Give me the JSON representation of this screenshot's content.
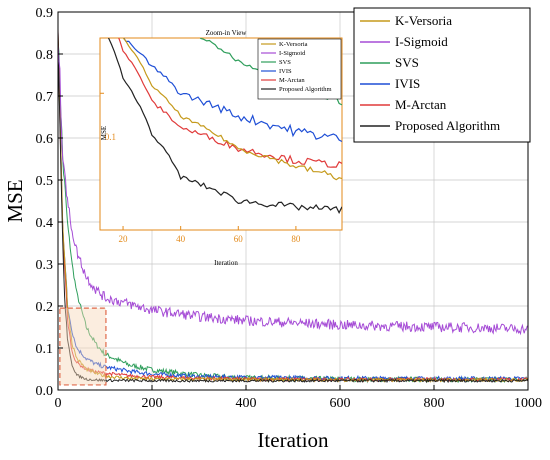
{
  "chart_data": {
    "type": "line",
    "xlabel": "Iteration",
    "ylabel": "MSE",
    "xlim": [
      0,
      1000
    ],
    "ylim": [
      0,
      0.9
    ],
    "x_ticks": [
      "0",
      "200",
      "400",
      "600",
      "800",
      "1000"
    ],
    "y_ticks": [
      "0.0",
      "0.1",
      "0.2",
      "0.3",
      "0.4",
      "0.5",
      "0.6",
      "0.7",
      "0.8",
      "0.9"
    ],
    "grid": true,
    "legend_position": "top-right",
    "series": [
      {
        "name": "K-Versoria",
        "color": "#c59a1c",
        "points": [
          [
            0,
            0.85
          ],
          [
            5,
            0.62
          ],
          [
            10,
            0.4
          ],
          [
            20,
            0.2
          ],
          [
            30,
            0.11
          ],
          [
            40,
            0.075
          ],
          [
            60,
            0.05
          ],
          [
            80,
            0.04
          ],
          [
            100,
            0.033
          ],
          [
            150,
            0.028
          ],
          [
            200,
            0.026
          ],
          [
            400,
            0.025
          ],
          [
            600,
            0.024
          ],
          [
            800,
            0.024
          ],
          [
            1000,
            0.024
          ]
        ]
      },
      {
        "name": "I-Sigmoid",
        "color": "#a64dd6",
        "points": [
          [
            0,
            0.85
          ],
          [
            5,
            0.7
          ],
          [
            10,
            0.58
          ],
          [
            15,
            0.52
          ],
          [
            20,
            0.45
          ],
          [
            30,
            0.38
          ],
          [
            40,
            0.33
          ],
          [
            60,
            0.27
          ],
          [
            80,
            0.24
          ],
          [
            100,
            0.22
          ],
          [
            150,
            0.205
          ],
          [
            200,
            0.19
          ],
          [
            300,
            0.175
          ],
          [
            400,
            0.165
          ],
          [
            500,
            0.16
          ],
          [
            600,
            0.155
          ],
          [
            700,
            0.152
          ],
          [
            800,
            0.15
          ],
          [
            900,
            0.148
          ],
          [
            1000,
            0.145
          ]
        ]
      },
      {
        "name": "SVS",
        "color": "#2e9e5b",
        "points": [
          [
            0,
            0.85
          ],
          [
            5,
            0.7
          ],
          [
            10,
            0.55
          ],
          [
            20,
            0.4
          ],
          [
            30,
            0.3
          ],
          [
            40,
            0.23
          ],
          [
            60,
            0.15
          ],
          [
            80,
            0.11
          ],
          [
            100,
            0.085
          ],
          [
            150,
            0.06
          ],
          [
            200,
            0.048
          ],
          [
            300,
            0.035
          ],
          [
            400,
            0.029
          ],
          [
            600,
            0.026
          ],
          [
            800,
            0.025
          ],
          [
            1000,
            0.025
          ]
        ]
      },
      {
        "name": "IVIS",
        "color": "#1f4fd6",
        "points": [
          [
            0,
            0.85
          ],
          [
            5,
            0.62
          ],
          [
            10,
            0.4
          ],
          [
            20,
            0.2
          ],
          [
            30,
            0.14
          ],
          [
            40,
            0.1
          ],
          [
            60,
            0.075
          ],
          [
            80,
            0.062
          ],
          [
            100,
            0.055
          ],
          [
            150,
            0.045
          ],
          [
            200,
            0.038
          ],
          [
            300,
            0.032
          ],
          [
            400,
            0.03
          ],
          [
            600,
            0.028
          ],
          [
            800,
            0.027
          ],
          [
            1000,
            0.027
          ]
        ]
      },
      {
        "name": "M-Arctan",
        "color": "#e03a3a",
        "points": [
          [
            0,
            0.85
          ],
          [
            5,
            0.6
          ],
          [
            10,
            0.38
          ],
          [
            20,
            0.17
          ],
          [
            30,
            0.09
          ],
          [
            40,
            0.065
          ],
          [
            60,
            0.05
          ],
          [
            80,
            0.043
          ],
          [
            100,
            0.04
          ],
          [
            150,
            0.034
          ],
          [
            200,
            0.031
          ],
          [
            300,
            0.028
          ],
          [
            400,
            0.026
          ],
          [
            600,
            0.025
          ],
          [
            800,
            0.025
          ],
          [
            1000,
            0.025
          ]
        ]
      },
      {
        "name": "Proposed Algorithm",
        "color": "#222222",
        "points": [
          [
            0,
            0.85
          ],
          [
            5,
            0.58
          ],
          [
            10,
            0.35
          ],
          [
            15,
            0.2
          ],
          [
            20,
            0.12
          ],
          [
            30,
            0.06
          ],
          [
            40,
            0.035
          ],
          [
            60,
            0.026
          ],
          [
            80,
            0.024
          ],
          [
            100,
            0.023
          ],
          [
            200,
            0.022
          ],
          [
            400,
            0.022
          ],
          [
            600,
            0.022
          ],
          [
            800,
            0.022
          ],
          [
            1000,
            0.022
          ]
        ]
      }
    ],
    "inset": {
      "title": "Zoom-in View",
      "xlabel": "Iteration",
      "ylabel": "MSE",
      "xlim": [
        12,
        96
      ],
      "x_ticks": [
        "20",
        "40",
        "60",
        "80"
      ],
      "y_tick_label": "0.1",
      "legend": [
        "K-Versoria",
        "I-Sigmoid",
        "SVS",
        "IVIS",
        "M-Arctan",
        "Proposed Algorithm"
      ]
    }
  }
}
